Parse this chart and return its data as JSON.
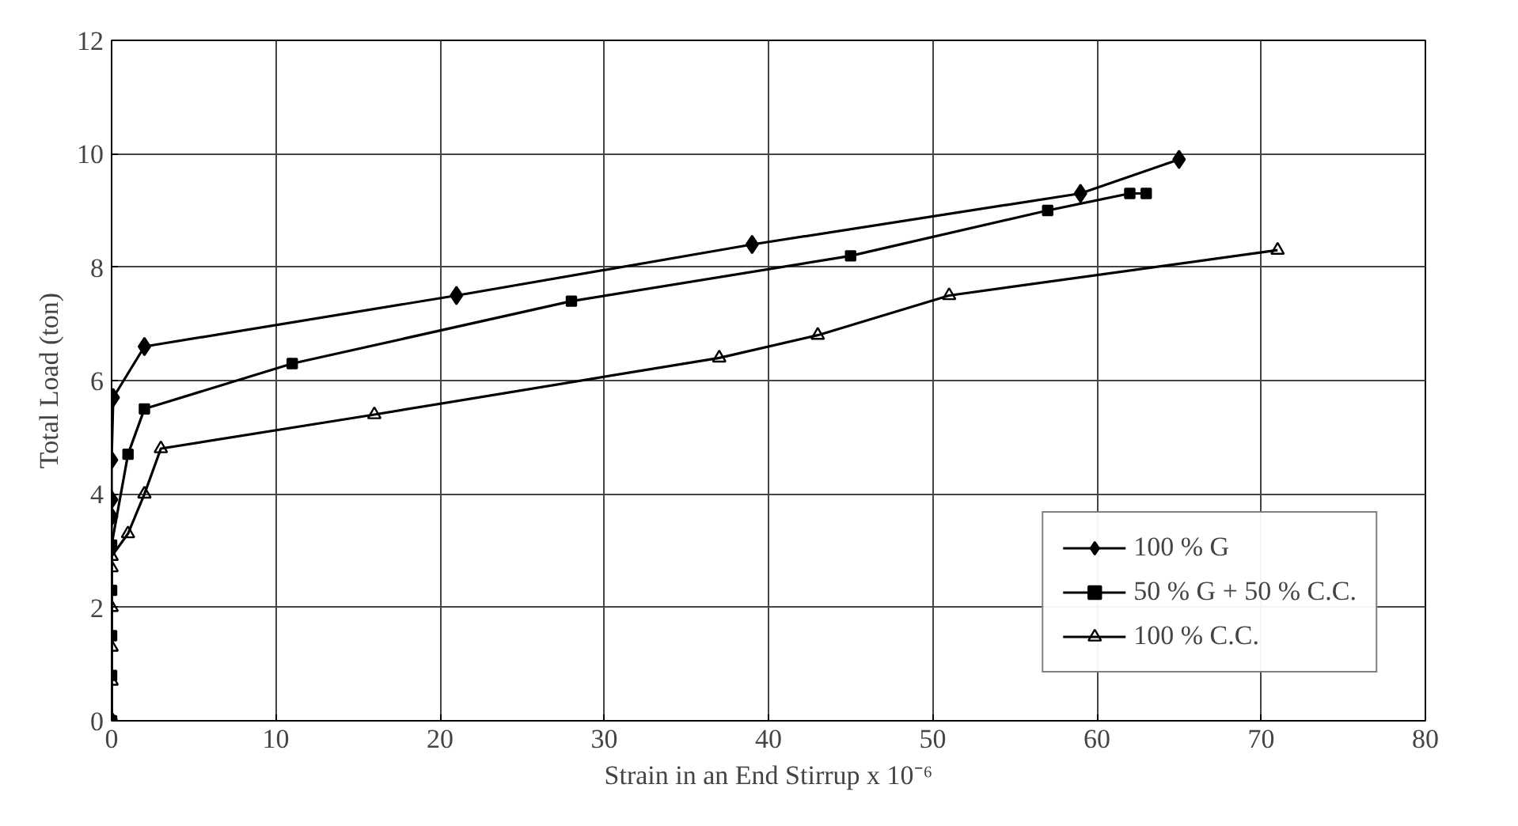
{
  "chart_data": {
    "type": "line",
    "xlabel": "Strain in an End Stirrup x 10⁻⁶",
    "ylabel": "Total Load (ton)",
    "xlim": [
      0,
      80
    ],
    "xticks": [
      0,
      10,
      20,
      30,
      40,
      50,
      60,
      70,
      80
    ],
    "ylim": [
      0,
      12
    ],
    "yticks": [
      0,
      2,
      4,
      6,
      8,
      10,
      12
    ],
    "grid": true,
    "legend": "bottom right",
    "series": [
      {
        "name": "100 % G",
        "color": "#000000",
        "marker": "diamond",
        "x": [
          0,
          0,
          0,
          0,
          0.1,
          2,
          21,
          39,
          59,
          65
        ],
        "values": [
          0,
          3.6,
          3.9,
          4.6,
          5.7,
          6.6,
          7.5,
          8.4,
          9.3,
          9.9
        ]
      },
      {
        "name": "50 % G + 50 % C.C.",
        "color": "#000000",
        "marker": "square",
        "x": [
          0,
          0,
          0,
          0,
          0,
          1,
          2,
          11,
          28,
          45,
          57,
          62,
          63
        ],
        "values": [
          0,
          0.8,
          1.5,
          2.3,
          3.1,
          4.7,
          5.5,
          6.3,
          7.4,
          8.2,
          9.0,
          9.3,
          9.3
        ]
      },
      {
        "name": "100 % C.C.",
        "color": "#000000",
        "marker": "triangle",
        "x": [
          0,
          0,
          0,
          0,
          0,
          0,
          1,
          2,
          3,
          16,
          37,
          43,
          51,
          71
        ],
        "values": [
          0,
          0.7,
          1.3,
          2.0,
          2.7,
          2.9,
          3.3,
          4.0,
          4.8,
          5.4,
          6.4,
          6.8,
          7.5,
          8.3
        ]
      }
    ]
  }
}
